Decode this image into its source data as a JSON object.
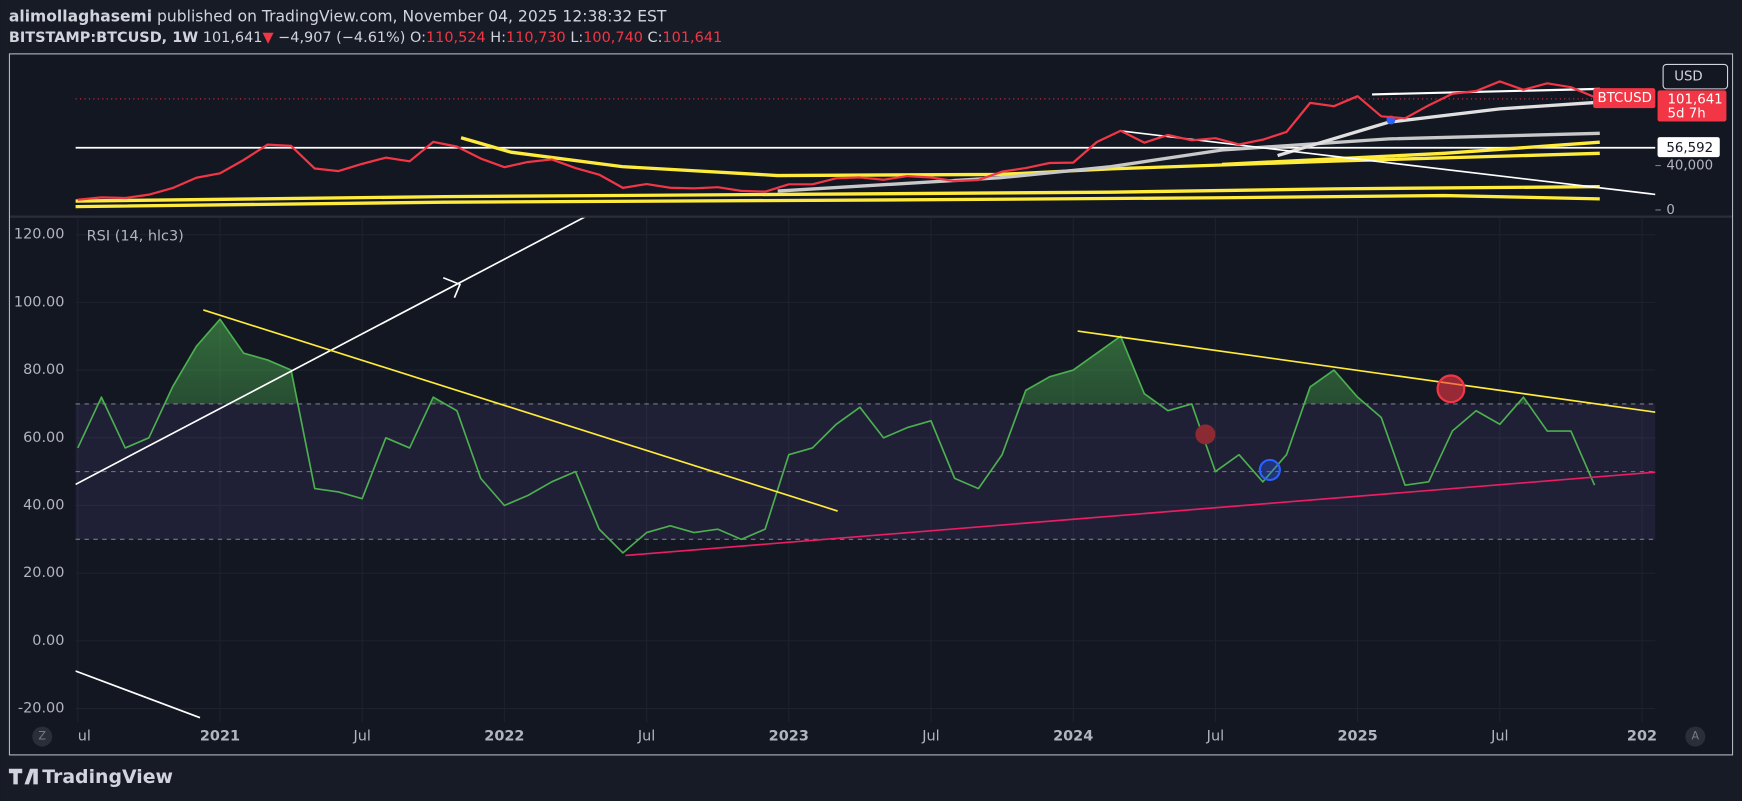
{
  "header": {
    "author": "alimollaghasemi",
    "published": "published on TradingView.com, November 04, 2025 12:38:32 EST",
    "symbol": "BITSTAMP:BTCUSD, 1W",
    "last": "101,641",
    "arrow": "▼",
    "change": "−4,907 (−4.61%)",
    "open_label": "O:",
    "open": "110,524",
    "high_label": "H:",
    "high": "110,730",
    "low_label": "L:",
    "low": "100,740",
    "close_label": "C:",
    "close": "101,641"
  },
  "chart_data": [
    {
      "type": "line",
      "x": [
        "2020-07",
        "2020-08",
        "2020-09",
        "2020-10",
        "2020-11",
        "2020-12",
        "2021-01",
        "2021-02",
        "2021-03",
        "2021-04",
        "2021-05",
        "2021-06",
        "2021-07",
        "2021-08",
        "2021-09",
        "2021-10",
        "2021-11",
        "2021-12",
        "2022-01",
        "2022-02",
        "2022-03",
        "2022-04",
        "2022-05",
        "2022-06",
        "2022-07",
        "2022-08",
        "2022-09",
        "2022-10",
        "2022-11",
        "2022-12",
        "2023-01",
        "2023-02",
        "2023-03",
        "2023-04",
        "2023-05",
        "2023-06",
        "2023-07",
        "2023-08",
        "2023-09",
        "2023-10",
        "2023-11",
        "2023-12",
        "2024-01",
        "2024-02",
        "2024-03",
        "2024-04",
        "2024-05",
        "2024-06",
        "2024-07",
        "2024-08",
        "2024-09",
        "2024-10",
        "2024-11",
        "2024-12",
        "2025-01",
        "2025-02",
        "2025-03",
        "2025-04",
        "2025-05",
        "2025-06",
        "2025-07",
        "2025-08",
        "2025-09",
        "2025-10",
        "2025-11"
      ],
      "series": [
        {
          "name": "BTCUSD",
          "color": "#f23645",
          "values": [
            9200,
            11300,
            10800,
            13800,
            19700,
            29000,
            33000,
            45000,
            58800,
            57700,
            37300,
            35000,
            41500,
            47100,
            43800,
            61300,
            57000,
            46300,
            38500,
            43200,
            45500,
            37700,
            31800,
            19900,
            23300,
            20000,
            19400,
            20500,
            17200,
            16500,
            23100,
            23100,
            28500,
            29300,
            27200,
            30500,
            29200,
            26000,
            27000,
            34500,
            37700,
            42300,
            42600,
            61200,
            71300,
            60600,
            67500,
            62700,
            64600,
            59000,
            63300,
            70200,
            96400,
            93400,
            102400,
            84300,
            82500,
            94200,
            104600,
            107100,
            115700,
            108200,
            114000,
            110500,
            101641
          ]
        }
      ],
      "xlim": [
        "2020-07",
        "2026-01"
      ],
      "ylim": [
        -5000,
        139000
      ],
      "yticks": [
        0,
        {
          "value": 40000,
          "label": "40,000"
        }
      ],
      "currency": "USD",
      "last_price": {
        "value": 101641,
        "label": "101,641"
      },
      "countdown": "5d 7h",
      "level": {
        "value": 56592,
        "label": "56,592"
      }
    },
    {
      "type": "line",
      "title": "RSI (14, hlc3)",
      "x": [
        "2020-07",
        "2020-08",
        "2020-09",
        "2020-10",
        "2020-11",
        "2020-12",
        "2021-01",
        "2021-02",
        "2021-03",
        "2021-04",
        "2021-05",
        "2021-06",
        "2021-07",
        "2021-08",
        "2021-09",
        "2021-10",
        "2021-11",
        "2021-12",
        "2022-01",
        "2022-02",
        "2022-03",
        "2022-04",
        "2022-05",
        "2022-06",
        "2022-07",
        "2022-08",
        "2022-09",
        "2022-10",
        "2022-11",
        "2022-12",
        "2023-01",
        "2023-02",
        "2023-03",
        "2023-04",
        "2023-05",
        "2023-06",
        "2023-07",
        "2023-08",
        "2023-09",
        "2023-10",
        "2023-11",
        "2023-12",
        "2024-01",
        "2024-02",
        "2024-03",
        "2024-04",
        "2024-05",
        "2024-06",
        "2024-07",
        "2024-08",
        "2024-09",
        "2024-10",
        "2024-11",
        "2024-12",
        "2025-01",
        "2025-02",
        "2025-03",
        "2025-04",
        "2025-05",
        "2025-06",
        "2025-07",
        "2025-08",
        "2025-09",
        "2025-10",
        "2025-11"
      ],
      "series": [
        {
          "color": "#4caf50",
          "values": [
            57,
            72,
            57,
            60,
            75,
            87,
            95,
            85,
            83,
            80,
            45,
            44,
            42,
            60,
            57,
            72,
            68,
            48,
            40,
            43,
            47,
            50,
            33,
            26,
            32,
            34,
            32,
            33,
            30,
            33,
            55,
            57,
            64,
            69,
            60,
            63,
            65,
            48,
            45,
            55,
            74,
            78,
            80,
            85,
            90,
            73,
            68,
            70,
            50,
            55,
            47,
            55,
            75,
            80,
            72,
            66,
            46,
            47,
            62,
            68,
            64,
            72,
            62,
            62,
            46
          ]
        }
      ],
      "xlim": [
        "2020-07",
        "2026-01"
      ],
      "ylim": [
        -24,
        125
      ],
      "yticks": [
        {
          "value": 120,
          "label": "120.00"
        },
        {
          "value": 100,
          "label": "100.00"
        },
        {
          "value": 80,
          "label": "80.00"
        },
        {
          "value": 60,
          "label": "60.00"
        },
        {
          "value": 40,
          "label": "40.00"
        },
        {
          "value": 20,
          "label": "20.00"
        },
        {
          "value": 0,
          "label": "0.00"
        },
        {
          "value": -20,
          "label": "-20.00"
        }
      ],
      "xticks": [
        {
          "value": "2020-07",
          "label": "ul"
        },
        {
          "value": "2021-01",
          "label": "2021"
        },
        {
          "value": "2021-07",
          "label": "Jul"
        },
        {
          "value": "2022-01",
          "label": "2022"
        },
        {
          "value": "2022-07",
          "label": "Jul"
        },
        {
          "value": "2023-01",
          "label": "2023"
        },
        {
          "value": "2023-07",
          "label": "Jul"
        },
        {
          "value": "2024-01",
          "label": "2024"
        },
        {
          "value": "2024-07",
          "label": "Jul"
        },
        {
          "value": "2025-01",
          "label": "2025"
        },
        {
          "value": "2025-07",
          "label": "Jul"
        },
        {
          "value": "2026-01",
          "label": "202"
        }
      ],
      "levels": [
        70,
        50,
        30
      ],
      "grid": true
    }
  ],
  "footer": {
    "logo": "TradingView",
    "left_button": "Z",
    "right_button": "A"
  }
}
